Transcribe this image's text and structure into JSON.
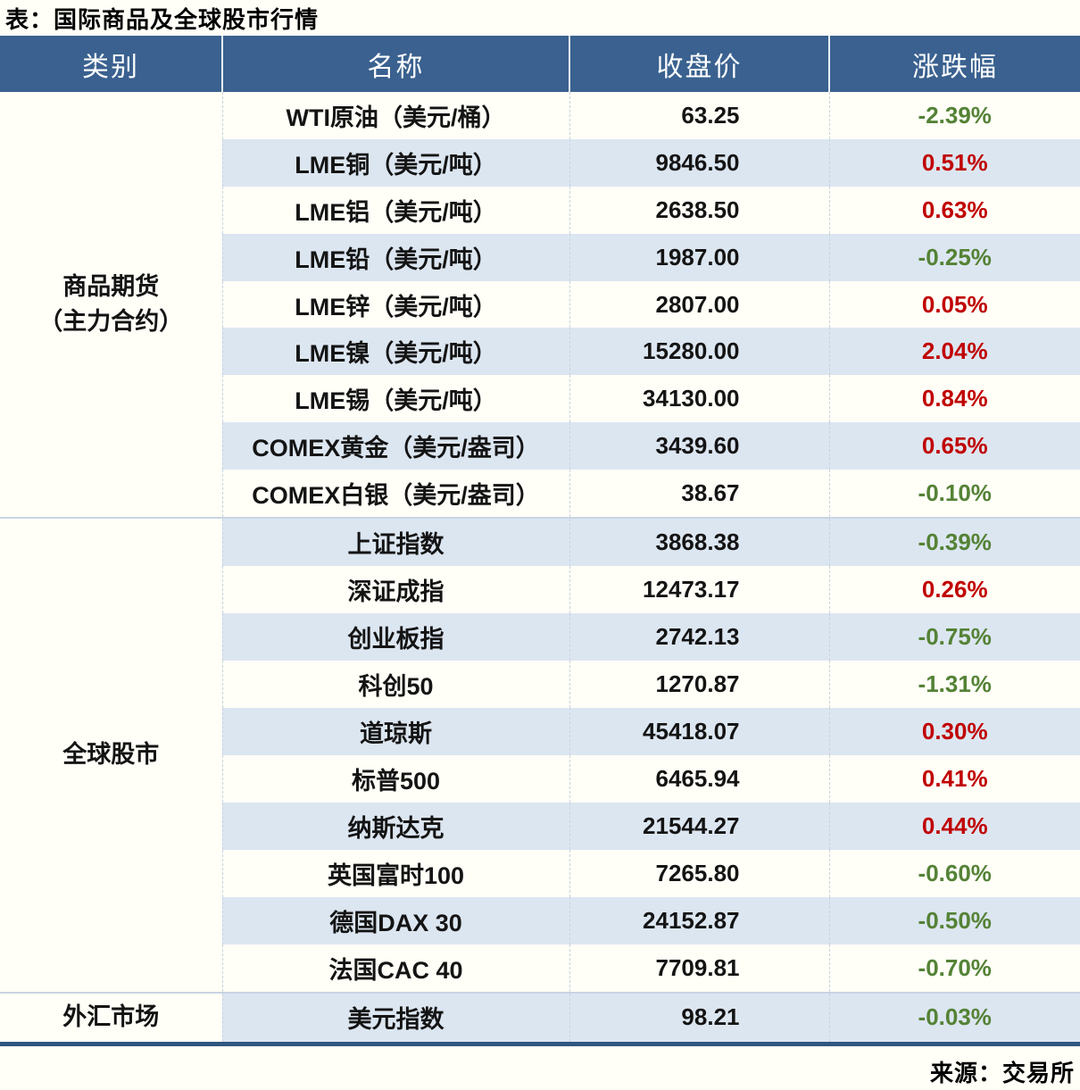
{
  "title": "表：国际商品及全球股市行情",
  "source": "来源：交易所",
  "colors": {
    "page_bg": "#FFFEF7",
    "header_bg": "#3A618F",
    "header_text": "#FFFFFF",
    "row_alt_bg": "#DCE6F1",
    "positive_change": "#C00000",
    "negative_change": "#548235",
    "table_bottom_border": "#2F5780"
  },
  "chart_data": {
    "type": "table",
    "title": "国际商品及全球股市行情",
    "columns": [
      "类别",
      "名称",
      "收盘价",
      "涨跌幅"
    ],
    "sections": [
      {
        "category": "商品期货（主力合约）",
        "category_lines": [
          "商品期货",
          "（主力合约）"
        ],
        "rows": [
          {
            "name": "WTI原油（美元/桶）",
            "close": "63.25",
            "change": "-2.39%",
            "direction": "down"
          },
          {
            "name": "LME铜（美元/吨）",
            "close": "9846.50",
            "change": "0.51%",
            "direction": "up"
          },
          {
            "name": "LME铝（美元/吨）",
            "close": "2638.50",
            "change": "0.63%",
            "direction": "up"
          },
          {
            "name": "LME铅（美元/吨）",
            "close": "1987.00",
            "change": "-0.25%",
            "direction": "down"
          },
          {
            "name": "LME锌（美元/吨）",
            "close": "2807.00",
            "change": "0.05%",
            "direction": "up"
          },
          {
            "name": "LME镍（美元/吨）",
            "close": "15280.00",
            "change": "2.04%",
            "direction": "up"
          },
          {
            "name": "LME锡（美元/吨）",
            "close": "34130.00",
            "change": "0.84%",
            "direction": "up"
          },
          {
            "name": "COMEX黄金（美元/盎司）",
            "close": "3439.60",
            "change": "0.65%",
            "direction": "up"
          },
          {
            "name": "COMEX白银（美元/盎司）",
            "close": "38.67",
            "change": "-0.10%",
            "direction": "down"
          }
        ]
      },
      {
        "category": "全球股市",
        "category_lines": [
          "全球股市"
        ],
        "rows": [
          {
            "name": "上证指数",
            "close": "3868.38",
            "change": "-0.39%",
            "direction": "down"
          },
          {
            "name": "深证成指",
            "close": "12473.17",
            "change": "0.26%",
            "direction": "up"
          },
          {
            "name": "创业板指",
            "close": "2742.13",
            "change": "-0.75%",
            "direction": "down"
          },
          {
            "name": "科创50",
            "close": "1270.87",
            "change": "-1.31%",
            "direction": "down"
          },
          {
            "name": "道琼斯",
            "close": "45418.07",
            "change": "0.30%",
            "direction": "up"
          },
          {
            "name": "标普500",
            "close": "6465.94",
            "change": "0.41%",
            "direction": "up"
          },
          {
            "name": "纳斯达克",
            "close": "21544.27",
            "change": "0.44%",
            "direction": "up"
          },
          {
            "name": "英国富时100",
            "close": "7265.80",
            "change": "-0.60%",
            "direction": "down"
          },
          {
            "name": "德国DAX 30",
            "close": "24152.87",
            "change": "-0.50%",
            "direction": "down"
          },
          {
            "name": "法国CAC 40",
            "close": "7709.81",
            "change": "-0.70%",
            "direction": "down"
          }
        ]
      },
      {
        "category": "外汇市场",
        "category_lines": [
          "外汇市场"
        ],
        "rows": [
          {
            "name": "美元指数",
            "close": "98.21",
            "change": "-0.03%",
            "direction": "down"
          }
        ]
      }
    ]
  }
}
